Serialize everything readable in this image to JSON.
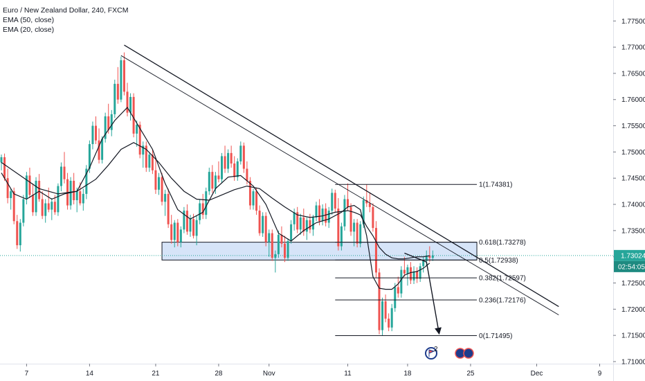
{
  "legend": {
    "title": "Euro / New Zealand Dollar, 240, FXCM",
    "ema50": "EMA (50, close)",
    "ema20": "EMA (20, close)"
  },
  "badges": {
    "price": "1.73024",
    "countdown": "02:54:05"
  },
  "colors": {
    "up": "#26a69a",
    "down": "#ef5350",
    "ema": "#131722",
    "trendline": "#131722",
    "zone_fill": "#d6e4f8",
    "zone_border": "#131722",
    "price_line": "#26a69a",
    "price_badge": "#26a69a",
    "countdown_badge": "#1e8a80",
    "axis_text": "#131722",
    "background": "#ffffff"
  },
  "event_icons": [
    "calendar-flag-icon",
    "news-event-icon"
  ],
  "event_icon_count_label": "2",
  "chart_data": {
    "type": "candlestick",
    "symbol": "Euro / New Zealand Dollar",
    "interval": "240",
    "source": "FXCM",
    "y_axis": {
      "ticks": [
        "1.77500",
        "1.77000",
        "1.76500",
        "1.76000",
        "1.75500",
        "1.75000",
        "1.74500",
        "1.74000",
        "1.73500",
        "1.73000",
        "1.72500",
        "1.72000",
        "1.71500",
        "1.71000"
      ],
      "range": [
        1.7096,
        1.779
      ]
    },
    "x_axis": {
      "ticks": [
        "7",
        "14",
        "21",
        "28",
        "Nov",
        "11",
        "18",
        "25",
        "Dec",
        "9"
      ],
      "index_range": [
        0,
        168
      ],
      "tick_index": [
        8,
        28,
        49,
        69,
        85,
        110,
        129,
        149,
        170,
        190
      ]
    },
    "current_price": 1.73024,
    "ohlc": [
      [
        1.748,
        1.7495,
        1.7465,
        1.749
      ],
      [
        1.749,
        1.7497,
        1.7445,
        1.745
      ],
      [
        1.745,
        1.7468,
        1.7402,
        1.7412
      ],
      [
        1.7412,
        1.743,
        1.739,
        1.7425
      ],
      [
        1.7425,
        1.7432,
        1.7362,
        1.7368
      ],
      [
        1.7368,
        1.738,
        1.7315,
        1.7322
      ],
      [
        1.7322,
        1.7372,
        1.731,
        1.7365
      ],
      [
        1.7365,
        1.7418,
        1.7358,
        1.741
      ],
      [
        1.741,
        1.7462,
        1.74,
        1.7455
      ],
      [
        1.7455,
        1.747,
        1.7412,
        1.7418
      ],
      [
        1.7418,
        1.744,
        1.7378,
        1.7385
      ],
      [
        1.7385,
        1.7452,
        1.7378,
        1.7445
      ],
      [
        1.7445,
        1.7458,
        1.7405,
        1.741
      ],
      [
        1.741,
        1.7425,
        1.7372,
        1.7378
      ],
      [
        1.7378,
        1.741,
        1.7365,
        1.7402
      ],
      [
        1.7402,
        1.7432,
        1.7385,
        1.739
      ],
      [
        1.739,
        1.7412,
        1.737,
        1.7405
      ],
      [
        1.7405,
        1.7418,
        1.738,
        1.7385
      ],
      [
        1.7385,
        1.744,
        1.7378,
        1.7435
      ],
      [
        1.7435,
        1.748,
        1.7425,
        1.7472
      ],
      [
        1.7472,
        1.75,
        1.744,
        1.7448
      ],
      [
        1.7448,
        1.746,
        1.739,
        1.7398
      ],
      [
        1.7398,
        1.7452,
        1.739,
        1.7445
      ],
      [
        1.7445,
        1.746,
        1.74,
        1.7408
      ],
      [
        1.7408,
        1.7432,
        1.7385,
        1.7425
      ],
      [
        1.7425,
        1.7442,
        1.7398,
        1.7402
      ],
      [
        1.7402,
        1.743,
        1.7388,
        1.742
      ],
      [
        1.742,
        1.7475,
        1.741,
        1.7468
      ],
      [
        1.7468,
        1.7522,
        1.746,
        1.7515
      ],
      [
        1.7515,
        1.7558,
        1.7505,
        1.755
      ],
      [
        1.755,
        1.7568,
        1.7515,
        1.7522
      ],
      [
        1.7522,
        1.7545,
        1.7478,
        1.7485
      ],
      [
        1.7485,
        1.753,
        1.7478,
        1.7525
      ],
      [
        1.7525,
        1.7575,
        1.7518,
        1.7568
      ],
      [
        1.7568,
        1.7592,
        1.7535,
        1.7542
      ],
      [
        1.7542,
        1.758,
        1.753,
        1.7572
      ],
      [
        1.7572,
        1.7638,
        1.7565,
        1.763
      ],
      [
        1.763,
        1.7662,
        1.7592,
        1.76
      ],
      [
        1.76,
        1.7682,
        1.7595,
        1.7675
      ],
      [
        1.7675,
        1.769,
        1.7608,
        1.7615
      ],
      [
        1.7615,
        1.7632,
        1.7568,
        1.7575
      ],
      [
        1.7575,
        1.7612,
        1.756,
        1.7605
      ],
      [
        1.7605,
        1.7612,
        1.7528,
        1.7535
      ],
      [
        1.7535,
        1.756,
        1.751,
        1.7552
      ],
      [
        1.7552,
        1.7558,
        1.7488,
        1.7495
      ],
      [
        1.7495,
        1.752,
        1.747,
        1.7512
      ],
      [
        1.7512,
        1.752,
        1.7462,
        1.747
      ],
      [
        1.747,
        1.75,
        1.7462,
        1.7495
      ],
      [
        1.7495,
        1.7505,
        1.7458,
        1.7465
      ],
      [
        1.7465,
        1.7488,
        1.742,
        1.7428
      ],
      [
        1.7428,
        1.746,
        1.7418,
        1.7452
      ],
      [
        1.7452,
        1.746,
        1.7398,
        1.7405
      ],
      [
        1.7405,
        1.7428,
        1.7378,
        1.742
      ],
      [
        1.742,
        1.743,
        1.7355,
        1.7362
      ],
      [
        1.7362,
        1.738,
        1.7325,
        1.7332
      ],
      [
        1.7332,
        1.737,
        1.7318,
        1.7365
      ],
      [
        1.7365,
        1.7372,
        1.732,
        1.7328
      ],
      [
        1.7328,
        1.7358,
        1.7318,
        1.7352
      ],
      [
        1.7352,
        1.7395,
        1.7345,
        1.7388
      ],
      [
        1.7388,
        1.74,
        1.7342,
        1.7348
      ],
      [
        1.7348,
        1.738,
        1.7338,
        1.7372
      ],
      [
        1.7372,
        1.7382,
        1.7335,
        1.734
      ],
      [
        1.734,
        1.7378,
        1.7322,
        1.737
      ],
      [
        1.737,
        1.741,
        1.7362,
        1.7402
      ],
      [
        1.7402,
        1.742,
        1.7372,
        1.738
      ],
      [
        1.738,
        1.7432,
        1.7372,
        1.7425
      ],
      [
        1.7425,
        1.747,
        1.7418,
        1.7462
      ],
      [
        1.7462,
        1.7475,
        1.7422,
        1.743
      ],
      [
        1.743,
        1.7462,
        1.742,
        1.7455
      ],
      [
        1.7455,
        1.7482,
        1.7442,
        1.7448
      ],
      [
        1.7448,
        1.7498,
        1.744,
        1.7492
      ],
      [
        1.7492,
        1.7512,
        1.746,
        1.7468
      ],
      [
        1.7468,
        1.7505,
        1.746,
        1.7498
      ],
      [
        1.7498,
        1.7512,
        1.747,
        1.7478
      ],
      [
        1.7478,
        1.7492,
        1.7445,
        1.7452
      ],
      [
        1.7452,
        1.7488,
        1.7445,
        1.7482
      ],
      [
        1.7482,
        1.752,
        1.7476,
        1.7512
      ],
      [
        1.7512,
        1.7518,
        1.746,
        1.7468
      ],
      [
        1.7468,
        1.7482,
        1.7438,
        1.7445
      ],
      [
        1.7445,
        1.7452,
        1.739,
        1.7398
      ],
      [
        1.7398,
        1.743,
        1.739,
        1.7425
      ],
      [
        1.7425,
        1.7432,
        1.738,
        1.7388
      ],
      [
        1.7388,
        1.7398,
        1.734,
        1.7345
      ],
      [
        1.7345,
        1.7385,
        1.7338,
        1.7378
      ],
      [
        1.7378,
        1.7385,
        1.732,
        1.7328
      ],
      [
        1.7328,
        1.7352,
        1.73,
        1.7345
      ],
      [
        1.7345,
        1.7352,
        1.7292,
        1.7298
      ],
      [
        1.7298,
        1.7312,
        1.727,
        1.7305
      ],
      [
        1.7305,
        1.735,
        1.7298,
        1.7342
      ],
      [
        1.7342,
        1.7358,
        1.7318,
        1.7325
      ],
      [
        1.7325,
        1.734,
        1.729,
        1.7298
      ],
      [
        1.7298,
        1.7335,
        1.7292,
        1.733
      ],
      [
        1.733,
        1.737,
        1.7325,
        1.7362
      ],
      [
        1.7362,
        1.7392,
        1.735,
        1.7385
      ],
      [
        1.7385,
        1.7395,
        1.7345,
        1.7352
      ],
      [
        1.7352,
        1.7382,
        1.7342,
        1.7375
      ],
      [
        1.7375,
        1.7392,
        1.734,
        1.7348
      ],
      [
        1.7348,
        1.7375,
        1.7332,
        1.737
      ],
      [
        1.737,
        1.7382,
        1.7345,
        1.7352
      ],
      [
        1.7352,
        1.738,
        1.734,
        1.7375
      ],
      [
        1.7375,
        1.7405,
        1.7368,
        1.7398
      ],
      [
        1.7398,
        1.741,
        1.736,
        1.7368
      ],
      [
        1.7368,
        1.74,
        1.736,
        1.7392
      ],
      [
        1.7392,
        1.7402,
        1.7358,
        1.7365
      ],
      [
        1.7365,
        1.7395,
        1.7355,
        1.7388
      ],
      [
        1.7388,
        1.743,
        1.738,
        1.7422
      ],
      [
        1.7422,
        1.7428,
        1.7385,
        1.7392
      ],
      [
        1.7392,
        1.7412,
        1.7312,
        1.732
      ],
      [
        1.732,
        1.7365,
        1.7312,
        1.7358
      ],
      [
        1.7358,
        1.7418,
        1.735,
        1.741
      ],
      [
        1.741,
        1.744,
        1.7388,
        1.7395
      ],
      [
        1.7395,
        1.7402,
        1.734,
        1.7348
      ],
      [
        1.7348,
        1.7372,
        1.732,
        1.7365
      ],
      [
        1.7365,
        1.7372,
        1.7318,
        1.7325
      ],
      [
        1.7325,
        1.7368,
        1.7318,
        1.7362
      ],
      [
        1.7362,
        1.7415,
        1.7355,
        1.7408
      ],
      [
        1.7408,
        1.7438,
        1.7395,
        1.7402
      ],
      [
        1.7402,
        1.7422,
        1.7385,
        1.7395
      ],
      [
        1.7395,
        1.7402,
        1.7348,
        1.7355
      ],
      [
        1.7355,
        1.7368,
        1.726,
        1.727
      ],
      [
        1.727,
        1.7278,
        1.7152,
        1.716
      ],
      [
        1.716,
        1.7222,
        1.715,
        1.7215
      ],
      [
        1.7215,
        1.7228,
        1.7175,
        1.7182
      ],
      [
        1.7182,
        1.7192,
        1.7158,
        1.7165
      ],
      [
        1.7165,
        1.721,
        1.7158,
        1.7202
      ],
      [
        1.7202,
        1.725,
        1.7195,
        1.7242
      ],
      [
        1.7242,
        1.7262,
        1.7222,
        1.723
      ],
      [
        1.723,
        1.7282,
        1.7222,
        1.7275
      ],
      [
        1.7275,
        1.73,
        1.7262,
        1.7268
      ],
      [
        1.7268,
        1.7285,
        1.7245,
        1.728
      ],
      [
        1.728,
        1.729,
        1.7248,
        1.7255
      ],
      [
        1.7255,
        1.7282,
        1.7248,
        1.7272
      ],
      [
        1.7272,
        1.728,
        1.725,
        1.7258
      ],
      [
        1.7258,
        1.7288,
        1.7252,
        1.7282
      ],
      [
        1.7282,
        1.73,
        1.727,
        1.7292
      ],
      [
        1.7292,
        1.7312,
        1.7282,
        1.7302
      ],
      [
        1.7302,
        1.732,
        1.729,
        1.7298
      ],
      [
        1.7298,
        1.7312,
        1.7292,
        1.73024
      ]
    ],
    "ema50": {
      "x": [
        0,
        6,
        12,
        18,
        24,
        30,
        34,
        38,
        42,
        46,
        50,
        54,
        58,
        62,
        66,
        70,
        74,
        78,
        82,
        86,
        90,
        94,
        98,
        102,
        106,
        110,
        112,
        114,
        116,
        118,
        120,
        122,
        124,
        126,
        128,
        130,
        132,
        134,
        136
      ],
      "y": [
        1.748,
        1.7455,
        1.743,
        1.742,
        1.7425,
        1.7448,
        1.7475,
        1.7505,
        1.7518,
        1.7505,
        1.748,
        1.745,
        1.7425,
        1.741,
        1.7408,
        1.7418,
        1.7428,
        1.7435,
        1.743,
        1.7412,
        1.7395,
        1.738,
        1.7375,
        1.7378,
        1.7385,
        1.7388,
        1.7385,
        1.738,
        1.7358,
        1.734,
        1.7318,
        1.7305,
        1.7298,
        1.7296,
        1.7296,
        1.7298,
        1.73,
        1.73,
        1.7302
      ]
    },
    "ema20": {
      "x": [
        0,
        4,
        8,
        12,
        16,
        20,
        24,
        28,
        32,
        36,
        40,
        44,
        48,
        52,
        56,
        60,
        64,
        68,
        72,
        76,
        80,
        84,
        88,
        92,
        96,
        100,
        104,
        108,
        110,
        112,
        114,
        116,
        118,
        120,
        122,
        124,
        126,
        128,
        130,
        132,
        134,
        136
      ],
      "y": [
        1.746,
        1.742,
        1.741,
        1.7425,
        1.741,
        1.742,
        1.7425,
        1.747,
        1.7525,
        1.756,
        1.7585,
        1.7545,
        1.7505,
        1.744,
        1.739,
        1.7372,
        1.7385,
        1.743,
        1.7452,
        1.7455,
        1.7435,
        1.74,
        1.7345,
        1.733,
        1.735,
        1.7365,
        1.7372,
        1.7385,
        1.7395,
        1.7398,
        1.739,
        1.734,
        1.7262,
        1.724,
        1.7238,
        1.7238,
        1.7248,
        1.7265,
        1.727,
        1.7272,
        1.7278,
        1.7288
      ]
    },
    "trendlines": [
      {
        "from": [
          39,
          1.7704
        ],
        "to": [
          177,
          1.7205
        ]
      },
      {
        "from": [
          38,
          1.7684
        ],
        "to": [
          177,
          1.7189
        ]
      }
    ],
    "support_zone": {
      "x0": 51,
      "x1": 151,
      "y_top": 1.73278,
      "y_bottom": 1.72938
    },
    "fibonacci": {
      "x0": 106,
      "x1": 151,
      "levels": [
        {
          "label": "1(1.74381)",
          "value": 1.74381
        },
        {
          "label": "0.618(1.73278)",
          "value": 1.73278
        },
        {
          "label": "0.5(1.72938)",
          "value": 1.72938
        },
        {
          "label": "0.382(1.72597)",
          "value": 1.72597
        },
        {
          "label": "0.236(1.72176)",
          "value": 1.72176
        },
        {
          "label": "0(1.71495)",
          "value": 1.71495
        }
      ]
    },
    "projection_arrow": [
      [
        128,
        1.7307
      ],
      [
        135,
        1.729
      ],
      [
        139,
        1.7154
      ]
    ],
    "grid": false
  }
}
